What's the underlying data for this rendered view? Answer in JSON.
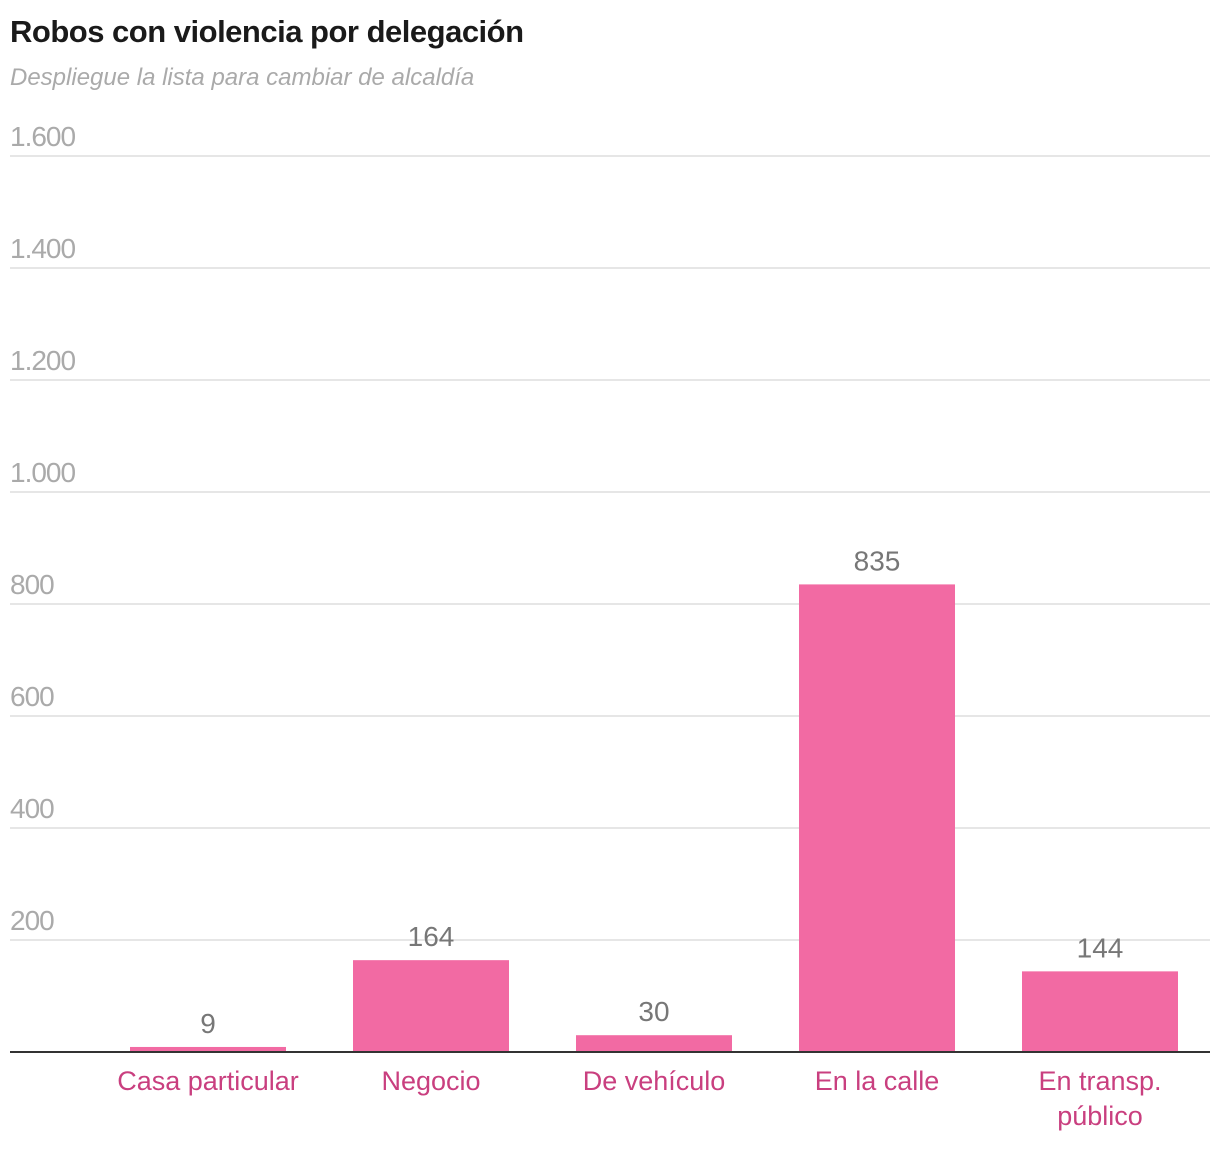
{
  "chart_data": {
    "type": "bar",
    "title": "Robos con violencia por delegación",
    "subtitle": "Despliegue la lista para cambiar de alcaldía",
    "categories": [
      "Casa particular",
      "Negocio",
      "De vehículo",
      "En la calle",
      "En transp. público"
    ],
    "values": [
      9,
      164,
      30,
      835,
      144
    ],
    "ylim": [
      0,
      1600
    ],
    "yticks": [
      200,
      400,
      600,
      800,
      1000,
      1200,
      1400,
      1600
    ],
    "ytick_labels": [
      "200",
      "400",
      "600",
      "800",
      "1.000",
      "1.200",
      "1.400",
      "1.600"
    ],
    "xlabel": "",
    "ylabel": "",
    "grid": true,
    "colors": {
      "bar": "#f26aa3",
      "category_label": "#c93f7f",
      "value_label": "#777777",
      "tick_label": "#aaaaaa",
      "grid": "#dddddd",
      "axis": "#333333"
    }
  }
}
